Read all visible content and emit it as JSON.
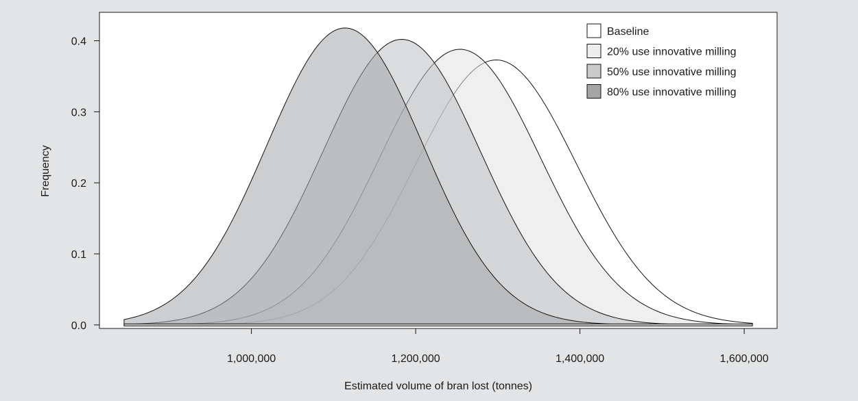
{
  "chart_data": {
    "type": "area",
    "title": "",
    "xlabel": "Estimated volume of bran lost (tonnes)",
    "ylabel": "Frequency",
    "xlim": [
      815000,
      1640000
    ],
    "ylim": [
      -0.005,
      0.44
    ],
    "x_ticks": [
      1000000,
      1200000,
      1400000,
      1600000
    ],
    "x_tick_labels": [
      "1,000,000",
      "1,200,000",
      "1,400,000",
      "1,600,000"
    ],
    "y_ticks": [
      0.0,
      0.1,
      0.2,
      0.3,
      0.4
    ],
    "y_tick_labels": [
      "0.0",
      "0.1",
      "0.2",
      "0.3",
      "0.4"
    ],
    "x_range": [
      845000,
      1610000
    ],
    "grid": false,
    "legend_position": "top-right",
    "series": [
      {
        "name": "Baseline",
        "mean": 1298000,
        "peak": 0.373,
        "sd": 98000,
        "fill": "#ffffff",
        "opacity": 0.55
      },
      {
        "name": "20% use innovative milling",
        "mean": 1254000,
        "peak": 0.388,
        "sd": 98000,
        "fill": "#e2e2e4",
        "opacity": 0.55
      },
      {
        "name": "50% use innovative milling",
        "mean": 1183000,
        "peak": 0.402,
        "sd": 96000,
        "fill": "#bebfc1",
        "opacity": 0.55
      },
      {
        "name": "80% use innovative milling",
        "mean": 1114000,
        "peak": 0.418,
        "sd": 95000,
        "fill": "#a4a5a7",
        "opacity": 0.55
      }
    ],
    "legend_swatches": [
      "#ffffff",
      "#ededef",
      "#c9cacc",
      "#a4a5a7"
    ]
  }
}
